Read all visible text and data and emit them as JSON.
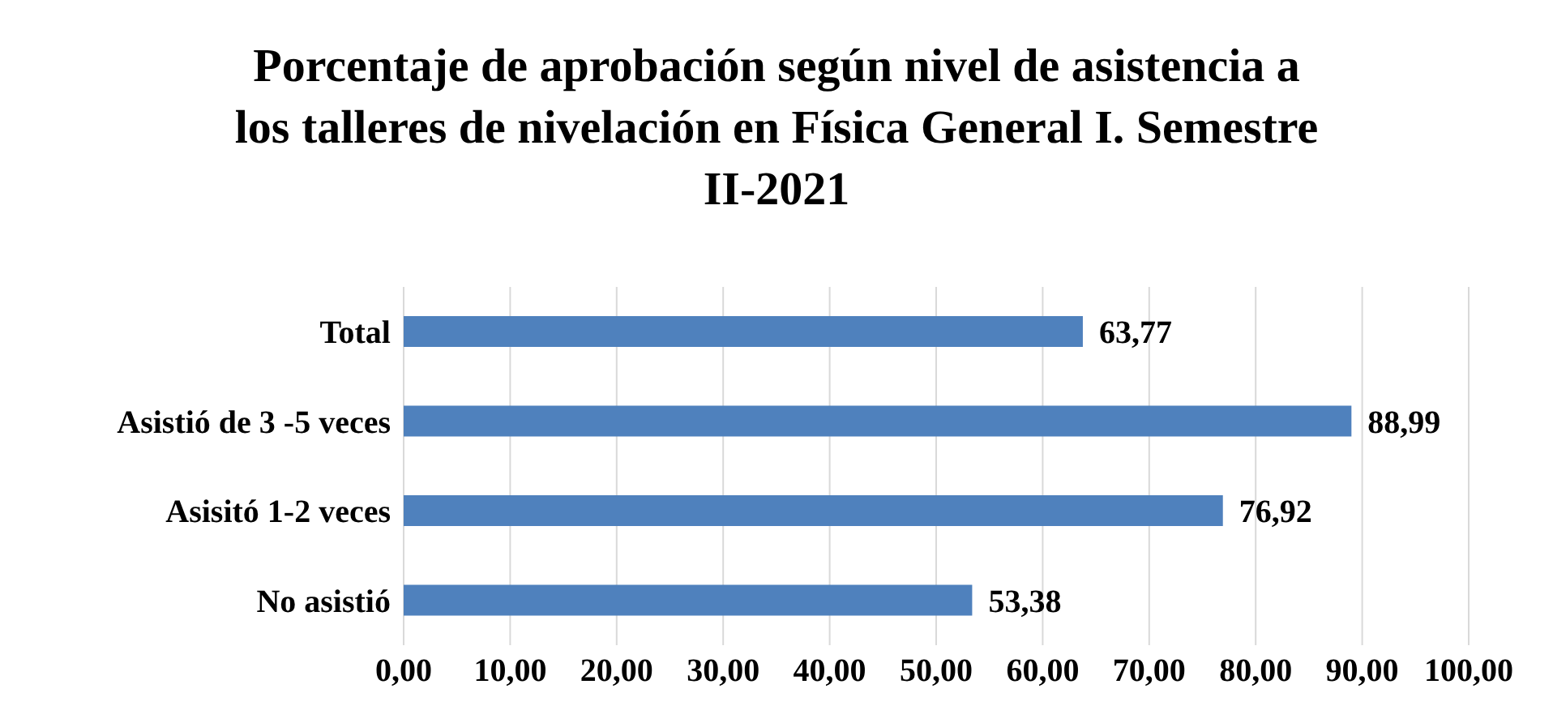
{
  "chart_data": {
    "type": "bar",
    "orientation": "horizontal",
    "title": "Porcentaje de aprobación según nivel de asistencia a los talleres de nivelación en Física General I. Semestre II-2021",
    "categories": [
      "Total",
      "Asistió de 3 -5 veces",
      "Asisitó 1-2 veces",
      "No asistió"
    ],
    "values": [
      63.77,
      88.99,
      76.92,
      53.38
    ],
    "value_labels": [
      "63,77",
      "88,99",
      "76,92",
      "53,38"
    ],
    "color": "#4f81bd",
    "xlim": [
      0,
      100
    ],
    "xticks": [
      {
        "value": 0,
        "label": "0,00"
      },
      {
        "value": 10,
        "label": "10,00"
      },
      {
        "value": 20,
        "label": "20,00"
      },
      {
        "value": 30,
        "label": "30,00"
      },
      {
        "value": 40,
        "label": "40,00"
      },
      {
        "value": 50,
        "label": "50,00"
      },
      {
        "value": 60,
        "label": "60,00"
      },
      {
        "value": 70,
        "label": "70,00"
      },
      {
        "value": 80,
        "label": "80,00"
      },
      {
        "value": 90,
        "label": "90,00"
      },
      {
        "value": 100,
        "label": "100,00"
      }
    ],
    "grid": "x",
    "legend": false
  }
}
